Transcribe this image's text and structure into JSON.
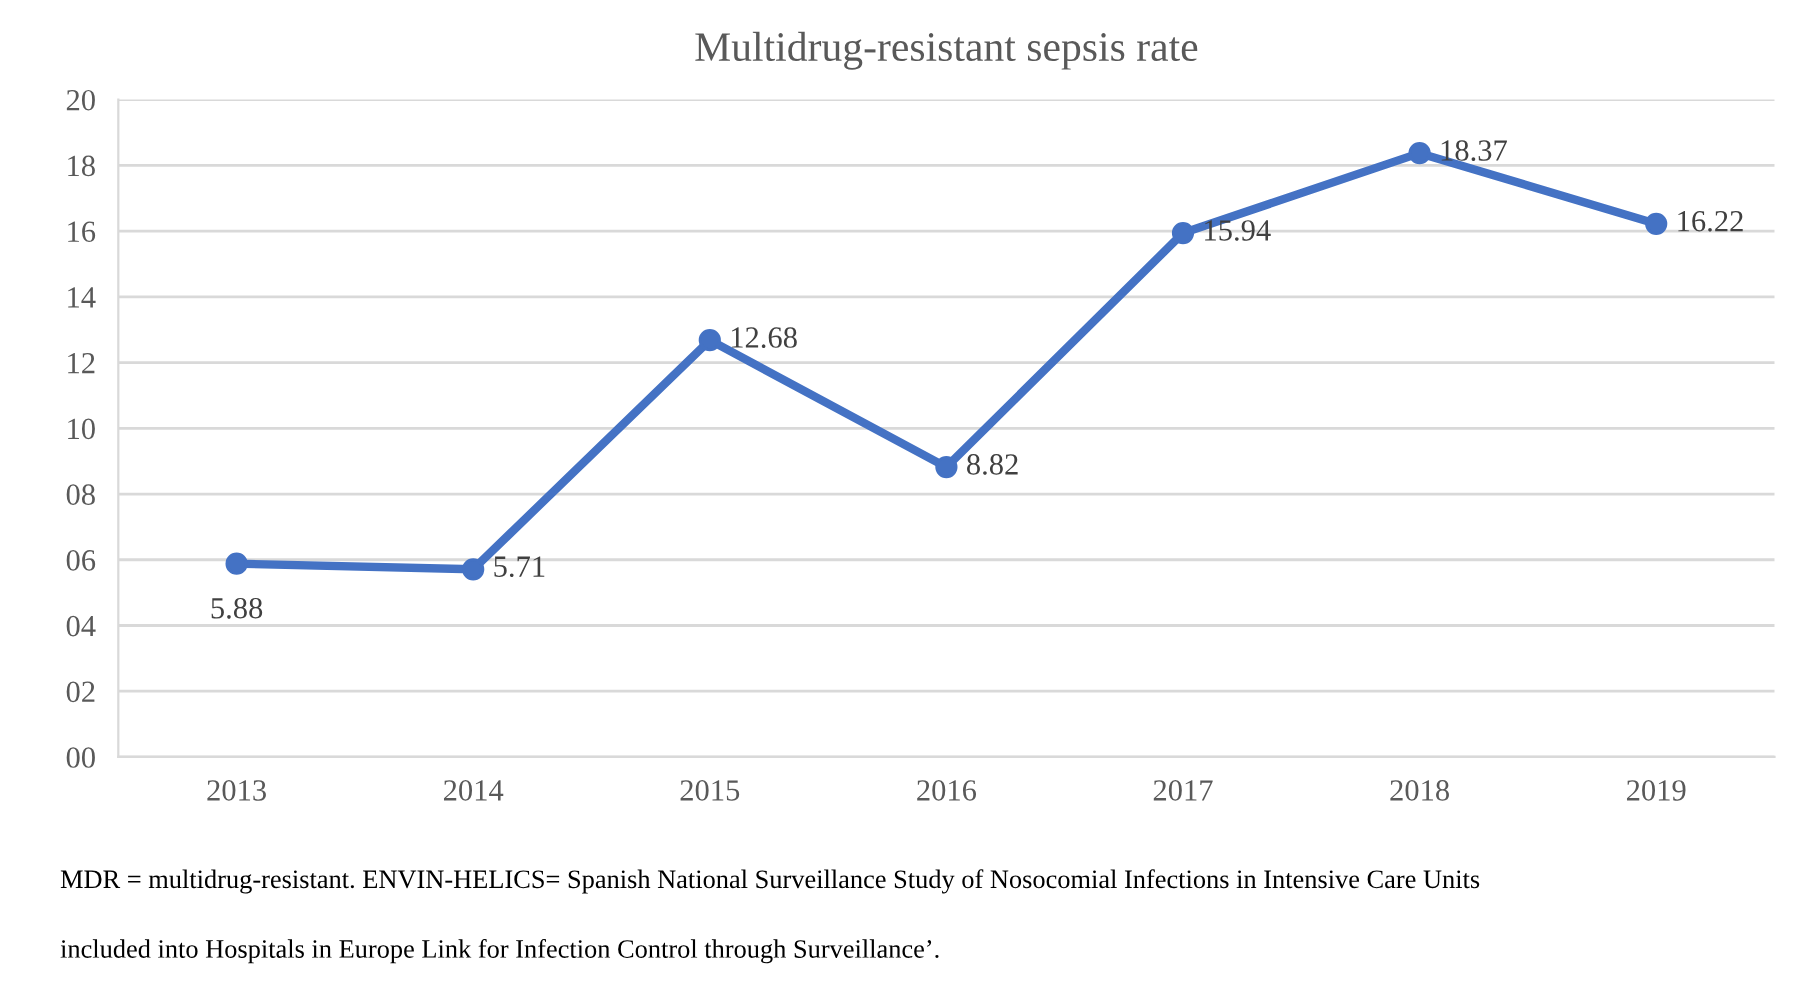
{
  "chart_data": {
    "type": "line",
    "title": "Multidrug-resistant sepsis rate",
    "categories": [
      "2013",
      "2014",
      "2015",
      "2016",
      "2017",
      "2018",
      "2019"
    ],
    "series": [
      {
        "color": "#4472c4",
        "values": [
          5.88,
          5.71,
          12.68,
          8.82,
          15.94,
          18.37,
          16.22
        ]
      }
    ],
    "ylim": [
      0,
      20
    ],
    "yticks": [
      {
        "value": 0,
        "label": "00"
      },
      {
        "value": 2,
        "label": "02"
      },
      {
        "value": 4,
        "label": "04"
      },
      {
        "value": 6,
        "label": "06"
      },
      {
        "value": 8,
        "label": "08"
      },
      {
        "value": 10,
        "label": "10"
      },
      {
        "value": 12,
        "label": "12"
      },
      {
        "value": 14,
        "label": "14"
      },
      {
        "value": 16,
        "label": "16"
      },
      {
        "value": 18,
        "label": "18"
      },
      {
        "value": 20,
        "label": "20"
      }
    ],
    "grid": "y",
    "marker": "circle",
    "line_style": "solid",
    "data_labels": true,
    "legend": false,
    "annotations": [
      "MDR = multidrug-resistant. ENVIN-HELICS= Spanish National Surveillance Study of Nosocomial Infections in Intensive Care Units",
      "included into Hospitals in Europe Link for Infection Control through Surveillance’."
    ]
  }
}
